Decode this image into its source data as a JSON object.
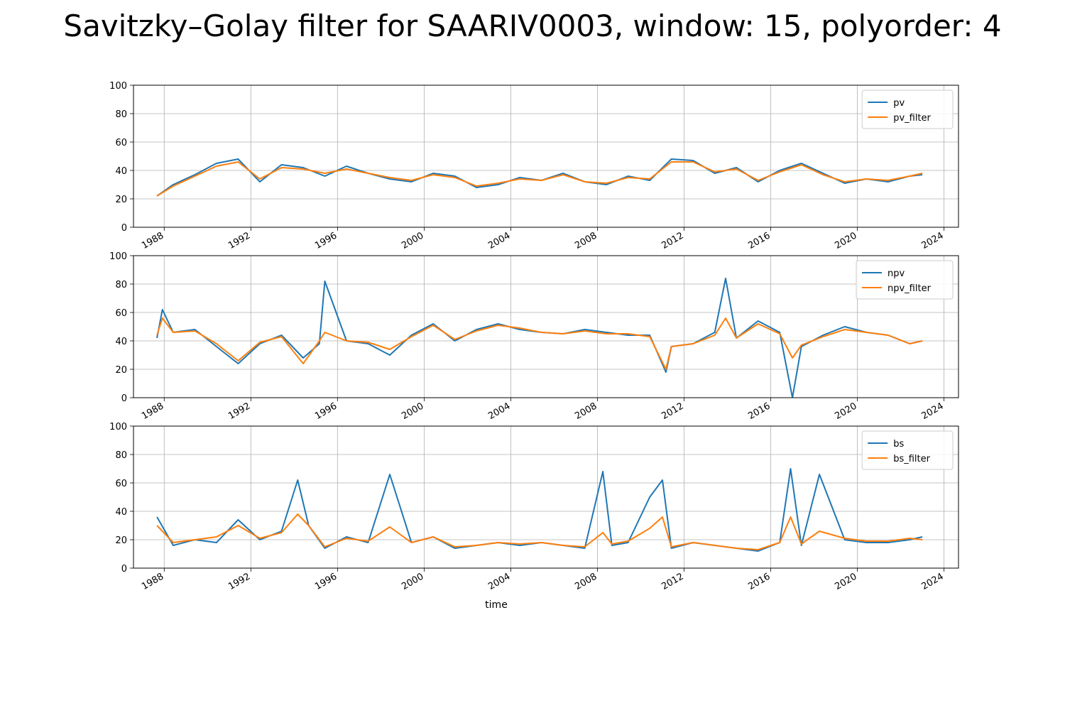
{
  "figure": {
    "title": "Savitzky–Golay filter for SAARIV0003, window: 15, polyorder: 4"
  },
  "chart_data": [
    {
      "type": "line",
      "xlabel": "",
      "ylabel": "",
      "ylim": [
        0,
        100
      ],
      "xlim": [
        "1986-08-01",
        "2024-09-01"
      ],
      "yticks": [
        0,
        20,
        40,
        60,
        80,
        100
      ],
      "xtick_labels": [
        "1988",
        "1992",
        "1996",
        "2000",
        "2004",
        "2008",
        "2012",
        "2016",
        "2020",
        "2024"
      ],
      "grid": true,
      "legend_position": "top-right",
      "x": [
        "1987-09",
        "1988-06",
        "1989-06",
        "1990-06",
        "1991-06",
        "1992-06",
        "1993-06",
        "1994-06",
        "1995-06",
        "1996-06",
        "1997-06",
        "1998-06",
        "1999-06",
        "2000-06",
        "2001-06",
        "2002-06",
        "2003-06",
        "2004-06",
        "2005-06",
        "2006-06",
        "2007-06",
        "2008-06",
        "2009-06",
        "2010-06",
        "2011-06",
        "2012-06",
        "2013-06",
        "2014-06",
        "2015-06",
        "2016-06",
        "2017-06",
        "2018-06",
        "2019-06",
        "2020-06",
        "2021-06",
        "2022-06",
        "2023-01"
      ],
      "series": [
        {
          "name": "pv",
          "color": "#1f77b4",
          "values": [
            22,
            30,
            37,
            45,
            48,
            32,
            44,
            42,
            36,
            43,
            38,
            34,
            32,
            38,
            36,
            28,
            30,
            35,
            33,
            38,
            32,
            30,
            36,
            33,
            48,
            47,
            38,
            42,
            32,
            40,
            45,
            38,
            31,
            34,
            32,
            36,
            37
          ]
        },
        {
          "name": "pv_filter",
          "color": "#ff7f0e",
          "values": [
            22,
            29,
            36,
            43,
            46,
            34,
            42,
            41,
            38,
            41,
            38,
            35,
            33,
            37,
            35,
            29,
            31,
            34,
            33,
            37,
            32,
            31,
            35,
            34,
            46,
            46,
            39,
            41,
            33,
            39,
            44,
            37,
            32,
            34,
            33,
            36,
            38
          ]
        }
      ]
    },
    {
      "type": "line",
      "xlabel": "",
      "ylabel": "",
      "ylim": [
        0,
        100
      ],
      "xlim": [
        "1986-08-01",
        "2024-09-01"
      ],
      "yticks": [
        0,
        20,
        40,
        60,
        80,
        100
      ],
      "xtick_labels": [
        "1988",
        "1992",
        "1996",
        "2000",
        "2004",
        "2008",
        "2012",
        "2016",
        "2020",
        "2024"
      ],
      "grid": true,
      "legend_position": "top-right",
      "x": [
        "1987-09",
        "1987-12",
        "1988-06",
        "1989-06",
        "1990-06",
        "1991-06",
        "1992-06",
        "1993-06",
        "1994-06",
        "1995-03",
        "1995-06",
        "1996-06",
        "1997-06",
        "1998-06",
        "1999-06",
        "2000-06",
        "2001-06",
        "2002-06",
        "2003-06",
        "2004-06",
        "2005-06",
        "2006-06",
        "2007-06",
        "2008-06",
        "2009-06",
        "2010-06",
        "2011-03",
        "2011-06",
        "2012-06",
        "2013-06",
        "2013-12",
        "2014-06",
        "2015-06",
        "2016-06",
        "2017-01",
        "2017-06",
        "2018-06",
        "2019-06",
        "2020-06",
        "2021-06",
        "2022-06",
        "2023-01"
      ],
      "series": [
        {
          "name": "npv",
          "color": "#1f77b4",
          "values": [
            42,
            62,
            46,
            48,
            36,
            24,
            38,
            44,
            28,
            38,
            82,
            40,
            38,
            30,
            44,
            52,
            40,
            48,
            52,
            48,
            46,
            45,
            48,
            46,
            44,
            44,
            18,
            36,
            38,
            46,
            84,
            42,
            54,
            46,
            0,
            36,
            44,
            50,
            46,
            44,
            38,
            40
          ]
        },
        {
          "name": "npv_filter",
          "color": "#ff7f0e",
          "values": [
            44,
            56,
            46,
            47,
            38,
            26,
            39,
            43,
            24,
            40,
            46,
            40,
            39,
            34,
            43,
            51,
            41,
            47,
            51,
            49,
            46,
            45,
            47,
            45,
            45,
            43,
            20,
            36,
            38,
            44,
            56,
            42,
            52,
            45,
            28,
            37,
            43,
            48,
            46,
            44,
            38,
            40
          ]
        }
      ]
    },
    {
      "type": "line",
      "xlabel": "time",
      "ylabel": "",
      "ylim": [
        0,
        100
      ],
      "xlim": [
        "1986-08-01",
        "2024-09-01"
      ],
      "yticks": [
        0,
        20,
        40,
        60,
        80,
        100
      ],
      "xtick_labels": [
        "1988",
        "1992",
        "1996",
        "2000",
        "2004",
        "2008",
        "2012",
        "2016",
        "2020",
        "2024"
      ],
      "grid": true,
      "legend_position": "top-right",
      "x": [
        "1987-09",
        "1988-06",
        "1989-06",
        "1990-06",
        "1991-06",
        "1992-06",
        "1993-06",
        "1994-03",
        "1994-09",
        "1995-06",
        "1996-06",
        "1997-06",
        "1998-06",
        "1999-06",
        "2000-06",
        "2001-06",
        "2002-06",
        "2003-06",
        "2004-06",
        "2005-06",
        "2006-06",
        "2007-06",
        "2008-04",
        "2008-09",
        "2009-06",
        "2010-06",
        "2011-01",
        "2011-06",
        "2012-06",
        "2013-06",
        "2014-06",
        "2015-06",
        "2016-06",
        "2016-12",
        "2017-06",
        "2018-04",
        "2019-06",
        "2020-06",
        "2021-06",
        "2022-06",
        "2023-01"
      ],
      "series": [
        {
          "name": "bs",
          "color": "#1f77b4",
          "values": [
            36,
            16,
            20,
            18,
            34,
            20,
            26,
            62,
            30,
            14,
            22,
            18,
            66,
            18,
            22,
            14,
            16,
            18,
            16,
            18,
            16,
            14,
            68,
            16,
            18,
            50,
            62,
            14,
            18,
            16,
            14,
            12,
            18,
            70,
            16,
            66,
            20,
            18,
            18,
            20,
            22
          ]
        },
        {
          "name": "bs_filter",
          "color": "#ff7f0e",
          "values": [
            30,
            18,
            20,
            22,
            30,
            21,
            25,
            38,
            30,
            15,
            21,
            19,
            29,
            18,
            22,
            15,
            16,
            18,
            17,
            18,
            16,
            15,
            25,
            17,
            19,
            28,
            36,
            15,
            18,
            16,
            14,
            13,
            18,
            36,
            17,
            26,
            21,
            19,
            19,
            21,
            20
          ]
        }
      ]
    }
  ]
}
